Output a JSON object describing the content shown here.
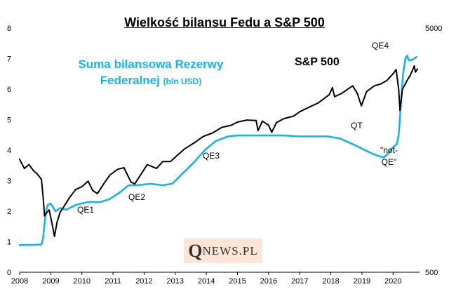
{
  "chart_data": {
    "type": "line",
    "title": "Wielkość bilansu Fedu a S&P 500",
    "x_ticks": [
      "2008",
      "2009",
      "2010",
      "2011",
      "2012",
      "2013",
      "2014",
      "2015",
      "2016",
      "2017",
      "2018",
      "2019",
      "2020"
    ],
    "x_range": [
      2008,
      2020.85
    ],
    "y_left": {
      "ticks": [
        "0",
        "1",
        "2",
        "3",
        "4",
        "5",
        "6",
        "7",
        "8"
      ],
      "range": [
        0,
        8
      ]
    },
    "y_right": {
      "ticks": [
        "500",
        "5000"
      ],
      "scale": "log",
      "range": [
        500,
        5000
      ]
    },
    "series": [
      {
        "name": "Suma bilansowa Rezerwy Federalnej (bln USD)",
        "color": "#19b3e6",
        "axis": "left",
        "points": [
          [
            2008.0,
            0.89
          ],
          [
            2008.5,
            0.9
          ],
          [
            2008.7,
            0.91
          ],
          [
            2008.75,
            1.1
          ],
          [
            2008.8,
            1.6
          ],
          [
            2008.85,
            2.0
          ],
          [
            2008.9,
            2.2
          ],
          [
            2009.0,
            2.25
          ],
          [
            2009.15,
            2.0
          ],
          [
            2009.3,
            2.1
          ],
          [
            2009.5,
            2.05
          ],
          [
            2009.8,
            2.2
          ],
          [
            2010.2,
            2.3
          ],
          [
            2010.6,
            2.3
          ],
          [
            2010.9,
            2.4
          ],
          [
            2011.2,
            2.6
          ],
          [
            2011.5,
            2.85
          ],
          [
            2011.8,
            2.85
          ],
          [
            2012.2,
            2.9
          ],
          [
            2012.6,
            2.85
          ],
          [
            2012.9,
            2.9
          ],
          [
            2013.2,
            3.2
          ],
          [
            2013.6,
            3.6
          ],
          [
            2013.95,
            4.0
          ],
          [
            2014.3,
            4.3
          ],
          [
            2014.7,
            4.45
          ],
          [
            2015.0,
            4.48
          ],
          [
            2015.5,
            4.48
          ],
          [
            2016.0,
            4.48
          ],
          [
            2016.5,
            4.48
          ],
          [
            2017.0,
            4.45
          ],
          [
            2017.5,
            4.45
          ],
          [
            2017.9,
            4.45
          ],
          [
            2018.3,
            4.38
          ],
          [
            2018.7,
            4.2
          ],
          [
            2019.0,
            4.05
          ],
          [
            2019.3,
            3.9
          ],
          [
            2019.55,
            3.8
          ],
          [
            2019.7,
            3.76
          ],
          [
            2019.85,
            3.9
          ],
          [
            2020.0,
            4.1
          ],
          [
            2020.12,
            4.2
          ],
          [
            2020.18,
            4.5
          ],
          [
            2020.25,
            5.5
          ],
          [
            2020.32,
            6.5
          ],
          [
            2020.4,
            7.0
          ],
          [
            2020.45,
            7.1
          ],
          [
            2020.5,
            6.95
          ],
          [
            2020.6,
            6.95
          ],
          [
            2020.75,
            7.05
          ]
        ]
      },
      {
        "name": "S&P 500",
        "color": "#000000",
        "axis": "right",
        "points": [
          [
            2008.0,
            1450
          ],
          [
            2008.15,
            1330
          ],
          [
            2008.3,
            1380
          ],
          [
            2008.45,
            1300
          ],
          [
            2008.55,
            1270
          ],
          [
            2008.7,
            1200
          ],
          [
            2008.76,
            1000
          ],
          [
            2008.8,
            850
          ],
          [
            2008.88,
            880
          ],
          [
            2008.95,
            900
          ],
          [
            2009.05,
            780
          ],
          [
            2009.12,
            700
          ],
          [
            2009.2,
            800
          ],
          [
            2009.3,
            880
          ],
          [
            2009.45,
            940
          ],
          [
            2009.6,
            1010
          ],
          [
            2009.8,
            1090
          ],
          [
            2010.0,
            1120
          ],
          [
            2010.2,
            1180
          ],
          [
            2010.35,
            1080
          ],
          [
            2010.5,
            1050
          ],
          [
            2010.7,
            1150
          ],
          [
            2010.9,
            1250
          ],
          [
            2011.15,
            1320
          ],
          [
            2011.35,
            1340
          ],
          [
            2011.58,
            1170
          ],
          [
            2011.7,
            1150
          ],
          [
            2011.9,
            1260
          ],
          [
            2012.1,
            1380
          ],
          [
            2012.4,
            1330
          ],
          [
            2012.6,
            1420
          ],
          [
            2012.85,
            1420
          ],
          [
            2013.05,
            1500
          ],
          [
            2013.3,
            1600
          ],
          [
            2013.6,
            1690
          ],
          [
            2013.9,
            1800
          ],
          [
            2014.2,
            1860
          ],
          [
            2014.5,
            1960
          ],
          [
            2014.8,
            2000
          ],
          [
            2015.0,
            2060
          ],
          [
            2015.3,
            2100
          ],
          [
            2015.6,
            2090
          ],
          [
            2015.66,
            1900
          ],
          [
            2015.8,
            2080
          ],
          [
            2016.0,
            2000
          ],
          [
            2016.1,
            1870
          ],
          [
            2016.25,
            2050
          ],
          [
            2016.5,
            2130
          ],
          [
            2016.8,
            2180
          ],
          [
            2017.0,
            2270
          ],
          [
            2017.3,
            2370
          ],
          [
            2017.6,
            2470
          ],
          [
            2017.95,
            2670
          ],
          [
            2018.05,
            2850
          ],
          [
            2018.12,
            2620
          ],
          [
            2018.35,
            2700
          ],
          [
            2018.7,
            2900
          ],
          [
            2018.85,
            2700
          ],
          [
            2018.98,
            2400
          ],
          [
            2019.15,
            2750
          ],
          [
            2019.4,
            2900
          ],
          [
            2019.6,
            2950
          ],
          [
            2019.8,
            3050
          ],
          [
            2020.0,
            3250
          ],
          [
            2020.1,
            3380
          ],
          [
            2020.18,
            2800
          ],
          [
            2020.22,
            2300
          ],
          [
            2020.3,
            2800
          ],
          [
            2020.45,
            3050
          ],
          [
            2020.55,
            3200
          ],
          [
            2020.62,
            3350
          ],
          [
            2020.68,
            3500
          ],
          [
            2020.72,
            3300
          ],
          [
            2020.78,
            3400
          ]
        ]
      }
    ],
    "annotations": [
      {
        "text": "QE1",
        "x": 2009.95,
        "y": 1.8
      },
      {
        "text": "QE2",
        "x": 2011.75,
        "y": 2.2
      },
      {
        "text": "QE3",
        "x": 2014.3,
        "y": 3.5
      },
      {
        "text": "QT",
        "x": 2019.0,
        "y": 4.5
      },
      {
        "text": "\"not-",
        "x": 2020.2,
        "y": 3.65
      },
      {
        "text": "QE\"",
        "x": 2020.2,
        "y": 3.3
      },
      {
        "text": "QE4",
        "x": 2019.95,
        "y": 7.0
      }
    ]
  },
  "legend": {
    "fed_line1": "Suma bilansowa Rezerwy",
    "fed_line2": "Federalnej",
    "fed_unit": "(bln USD)",
    "sp": "S&P 500"
  },
  "logo": {
    "initial": "Q",
    "rest": "NEWS.PL"
  }
}
